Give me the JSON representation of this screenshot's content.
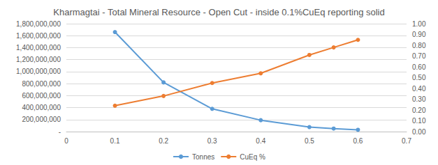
{
  "chart_data": {
    "type": "line",
    "title": "Kharmagtai - Total Mineral Resource - Open Cut - inside 0.1%CuEq reporting solid",
    "x": [
      0.1,
      0.2,
      0.3,
      0.4,
      0.5,
      0.55,
      0.6
    ],
    "series": [
      {
        "name": "Tonnes",
        "color": "#5b9bd5",
        "marker": "circle",
        "axis": "y",
        "values": [
          1660000000,
          820000000,
          380000000,
          190000000,
          75000000,
          50000000,
          30000000
        ]
      },
      {
        "name": "CuEq %",
        "color": "#ed7d31",
        "marker": "circle",
        "axis": "y2",
        "values": [
          0.24,
          0.33,
          0.45,
          0.54,
          0.71,
          0.78,
          0.85
        ]
      }
    ],
    "xlim": [
      0,
      0.7
    ],
    "xticks": [
      0,
      0.1,
      0.2,
      0.3,
      0.4,
      0.5,
      0.6,
      0.7
    ],
    "ylim": [
      0,
      1800000000
    ],
    "yticks": [
      {
        "value": 0,
        "label": "-"
      },
      {
        "value": 200000000,
        "label": "200,000,000"
      },
      {
        "value": 400000000,
        "label": "400,000,000"
      },
      {
        "value": 600000000,
        "label": "600,000,000"
      },
      {
        "value": 800000000,
        "label": "800,000,000"
      },
      {
        "value": 1000000000,
        "label": "1,000,000,000"
      },
      {
        "value": 1200000000,
        "label": "1,200,000,000"
      },
      {
        "value": 1400000000,
        "label": "1,400,000,000"
      },
      {
        "value": 1600000000,
        "label": "1,600,000,000"
      },
      {
        "value": 1800000000,
        "label": "1,800,000,000"
      }
    ],
    "y2lim": [
      0,
      1
    ],
    "y2ticks": [
      {
        "value": 0,
        "label": "0.00"
      },
      {
        "value": 0.1,
        "label": "0.10"
      },
      {
        "value": 0.2,
        "label": "0.20"
      },
      {
        "value": 0.3,
        "label": "0.30"
      },
      {
        "value": 0.4,
        "label": "0.40"
      },
      {
        "value": 0.5,
        "label": "0.50"
      },
      {
        "value": 0.6,
        "label": "0.60"
      },
      {
        "value": 0.7,
        "label": "0.70"
      },
      {
        "value": 0.8,
        "label": "0.80"
      },
      {
        "value": 0.9,
        "label": "0.90"
      },
      {
        "value": 1,
        "label": "1.00"
      }
    ],
    "grid": true,
    "legend": "bottom"
  }
}
